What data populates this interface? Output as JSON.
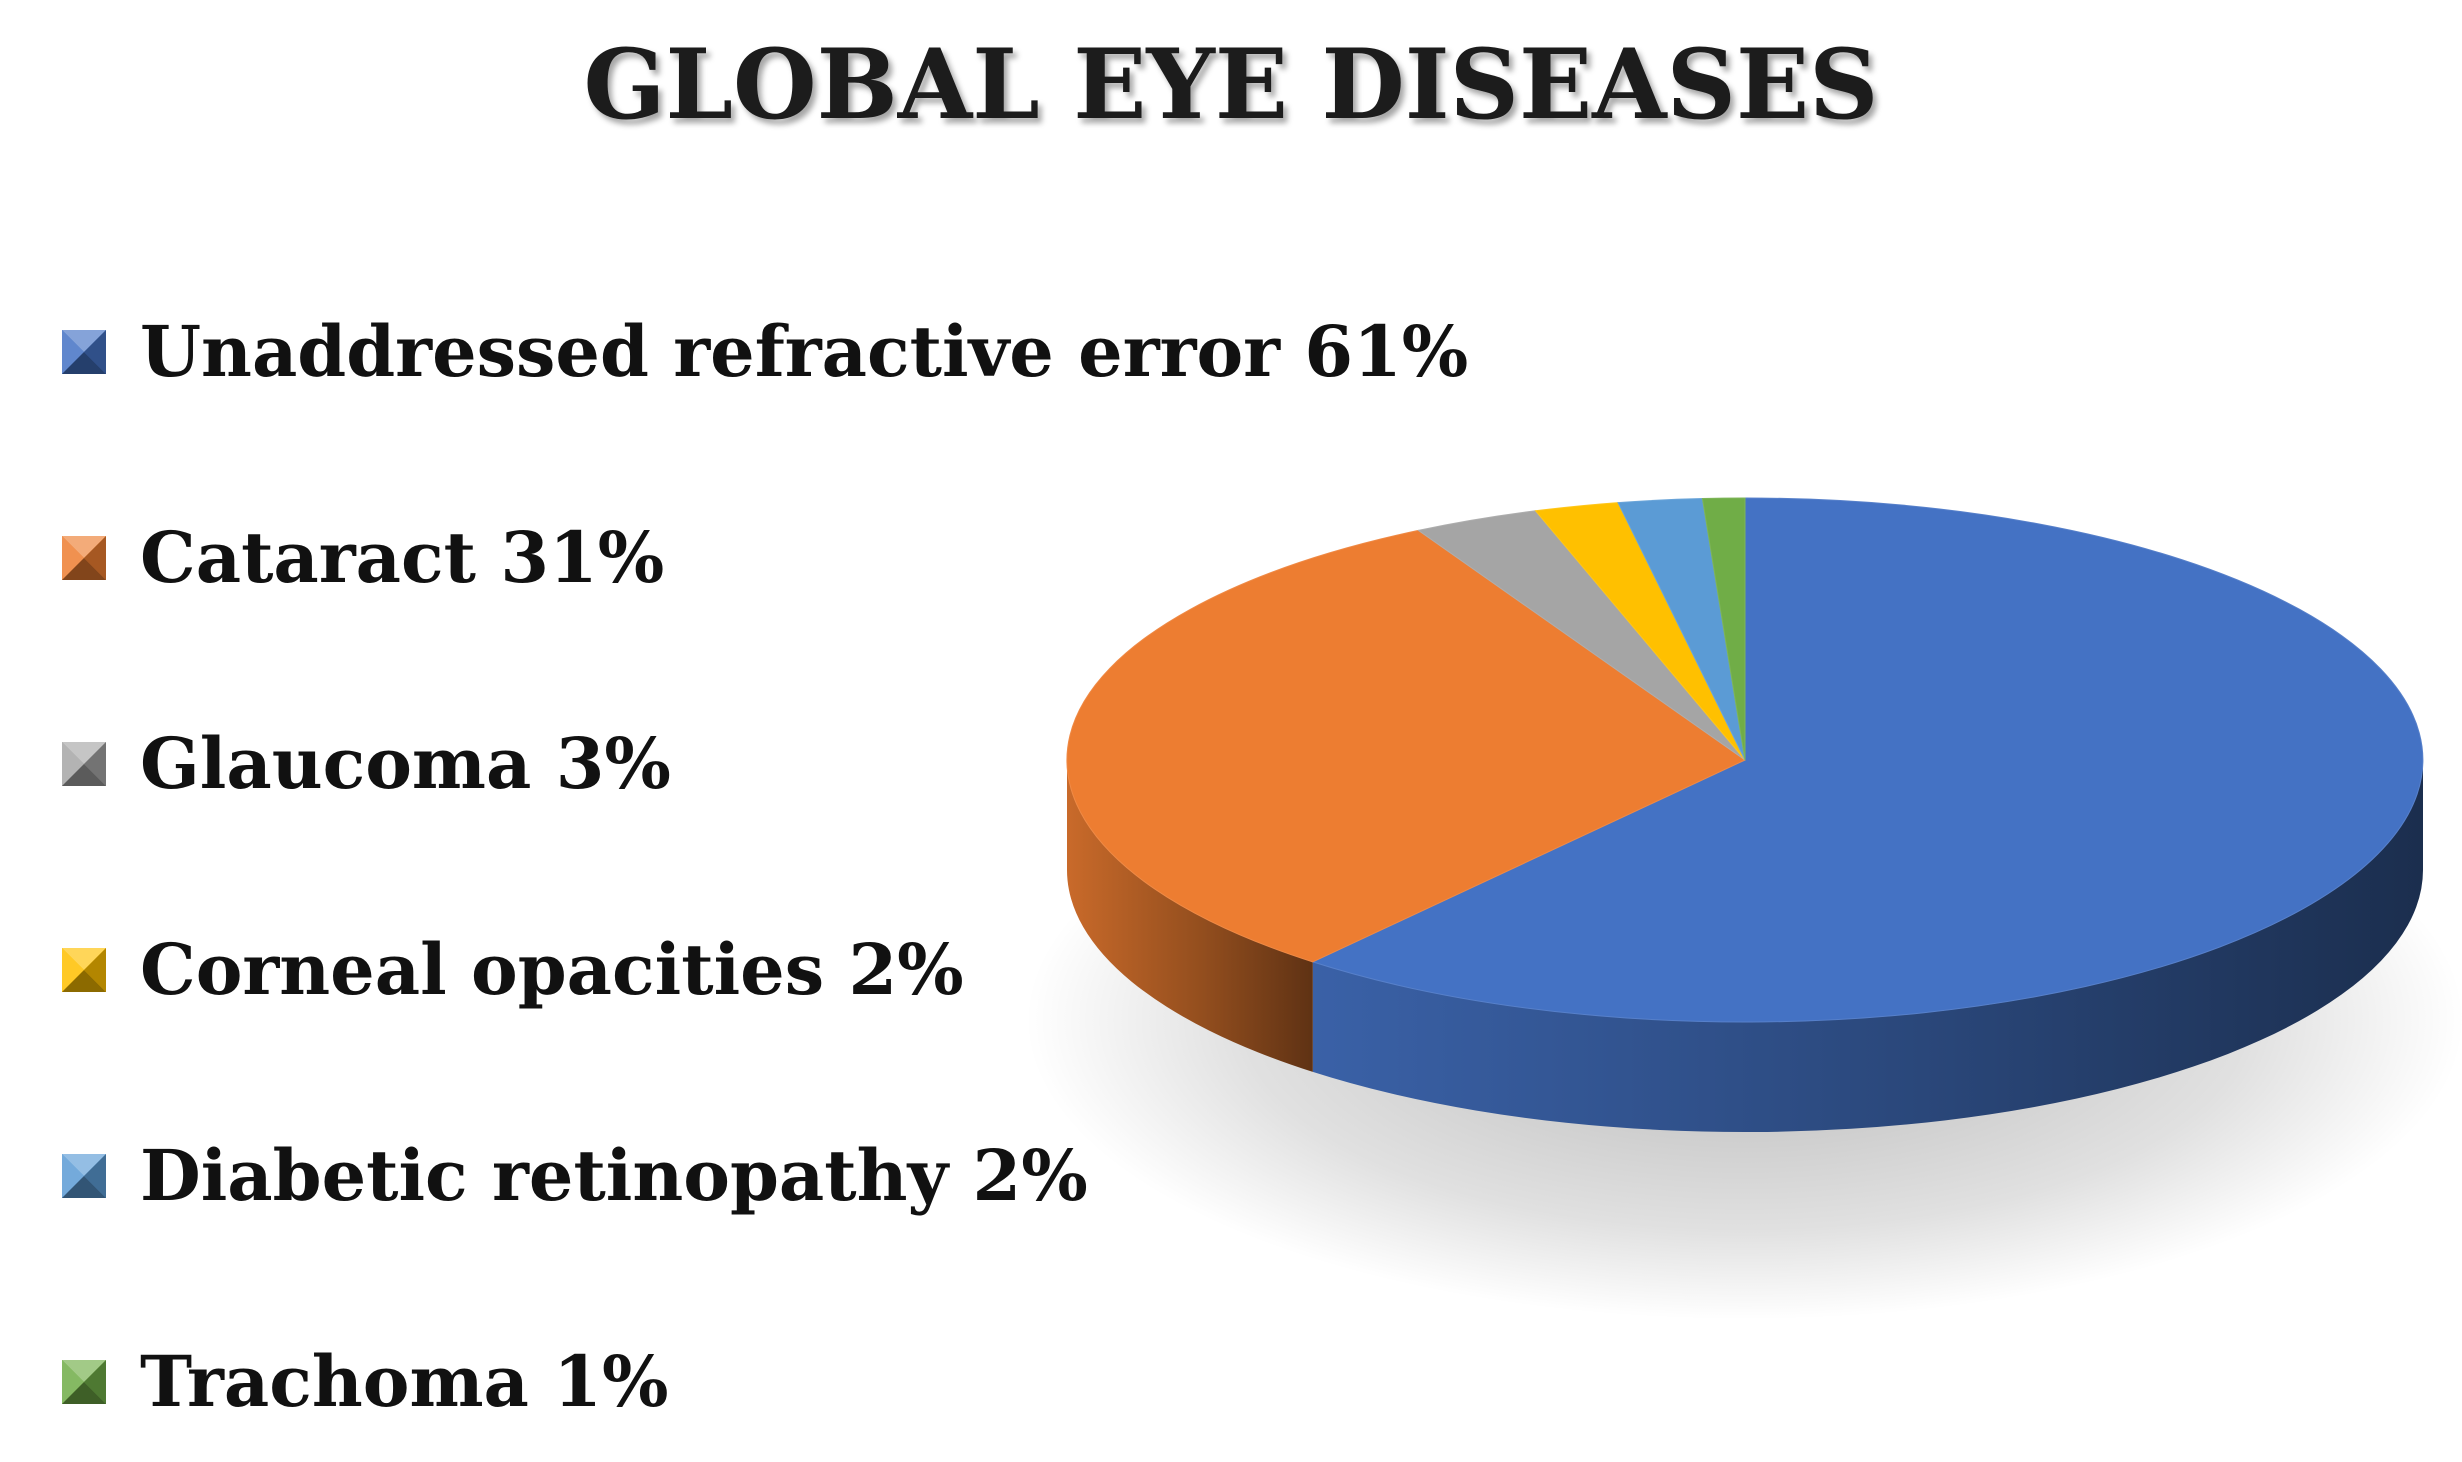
{
  "chart_data": {
    "type": "pie",
    "title": "GLOBAL EYE DISEASES",
    "legend_position": "left",
    "style": "3d",
    "slices": [
      {
        "name": "Unaddressed refractive error",
        "value": 61,
        "label": "Unaddressed refractive error 61%",
        "color": "#4472C4"
      },
      {
        "name": "Cataract",
        "value": 31,
        "label": "Cataract 31%",
        "color": "#ED7D31"
      },
      {
        "name": "Glaucoma",
        "value": 3,
        "label": "Glaucoma 3%",
        "color": "#A5A5A5"
      },
      {
        "name": "Corneal opacities",
        "value": 2,
        "label": "Corneal opacities 2%",
        "color": "#FFC000"
      },
      {
        "name": "Diabetic retinopathy",
        "value": 2,
        "label": "Diabetic retinopathy 2%",
        "color": "#5B9BD5"
      },
      {
        "name": "Trachoma",
        "value": 1,
        "label": "Trachoma 1%",
        "color": "#70AD47"
      }
    ]
  }
}
